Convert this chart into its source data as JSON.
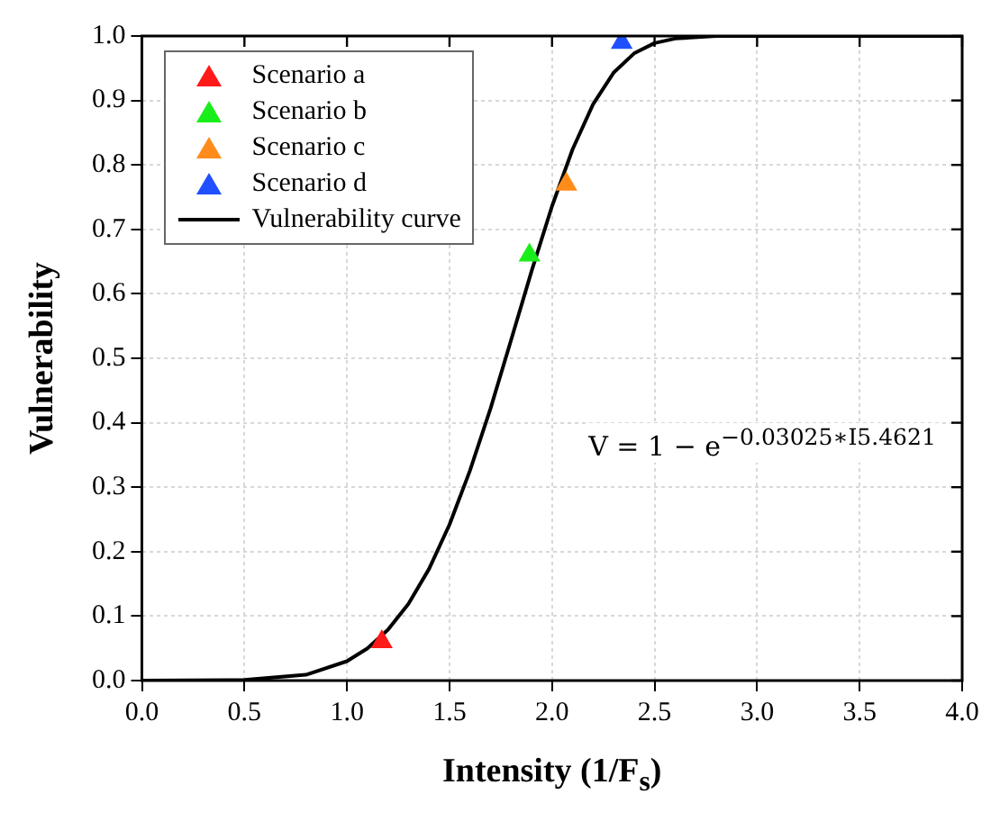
{
  "chart_data": {
    "type": "line",
    "xlabel": "Intensity (1/F$_{s}$)",
    "ylabel": "Vulnerability",
    "xlim": [
      0,
      4
    ],
    "ylim": [
      0,
      1
    ],
    "xticks": [
      {
        "value": 0,
        "label": "0.0"
      },
      {
        "value": 0.5,
        "label": "0.5"
      },
      {
        "value": 1,
        "label": "1.0"
      },
      {
        "value": 1.5,
        "label": "1.5"
      },
      {
        "value": 2,
        "label": "2.0"
      },
      {
        "value": 2.5,
        "label": "2.5"
      },
      {
        "value": 3,
        "label": "3.0"
      },
      {
        "value": 3.5,
        "label": "3.5"
      },
      {
        "value": 4,
        "label": "4.0"
      }
    ],
    "yticks": [
      {
        "value": 0,
        "label": "0.0"
      },
      {
        "value": 0.1,
        "label": "0.1"
      },
      {
        "value": 0.2,
        "label": "0.2"
      },
      {
        "value": 0.3,
        "label": "0.3"
      },
      {
        "value": 0.4,
        "label": "0.4"
      },
      {
        "value": 0.5,
        "label": "0.5"
      },
      {
        "value": 0.6,
        "label": "0.6"
      },
      {
        "value": 0.7,
        "label": "0.7"
      },
      {
        "value": 0.8,
        "label": "0.8"
      },
      {
        "value": 0.9,
        "label": "0.9"
      },
      {
        "value": 1,
        "label": "1.0"
      }
    ],
    "grid": true,
    "legend": "top left",
    "annotations": [
      "V = 1 − e$^{−0.03025∗I}$$^{5.4621}$"
    ],
    "series": [
      {
        "name": "Scenario a",
        "type": "scatter",
        "marker": "triangle",
        "color": "#ff1a1a",
        "x": [
          1.17
        ],
        "values": [
          0.06
        ]
      },
      {
        "name": "Scenario b",
        "type": "scatter",
        "marker": "triangle",
        "color": "#1aee1a",
        "x": [
          1.89
        ],
        "values": [
          0.66
        ]
      },
      {
        "name": "Scenario c",
        "type": "scatter",
        "marker": "triangle",
        "color": "#ff8c1a",
        "x": [
          2.07
        ],
        "values": [
          0.77
        ]
      },
      {
        "name": "Scenario d",
        "type": "scatter",
        "marker": "triangle",
        "color": "#1f4fff",
        "x": [
          2.34
        ],
        "values": [
          0.99
        ]
      },
      {
        "name": "Vulnerability curve",
        "color": "#000000",
        "x": [
          0,
          0.5,
          0.8,
          1.0,
          1.1,
          1.2,
          1.3,
          1.4,
          1.5,
          1.6,
          1.7,
          1.8,
          1.9,
          2.0,
          2.1,
          2.2,
          2.3,
          2.4,
          2.5,
          2.6,
          2.8,
          3.0,
          3.5,
          4.0
        ],
        "values": [
          0,
          0.001,
          0.009,
          0.03,
          0.05,
          0.079,
          0.119,
          0.173,
          0.242,
          0.326,
          0.422,
          0.528,
          0.635,
          0.736,
          0.824,
          0.894,
          0.943,
          0.973,
          0.989,
          0.996,
          1,
          1,
          1,
          1
        ]
      }
    ]
  }
}
